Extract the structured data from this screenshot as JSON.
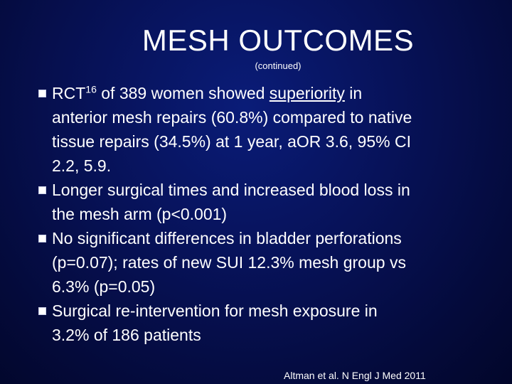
{
  "title": "MESH OUTCOMES",
  "subtitle": "(continued)",
  "bullets": [
    {
      "rct_prefix": "RCT",
      "rct_superscript": "16",
      "rct_middle": " of 389 women showed ",
      "rct_underlined": "superiority",
      "rct_after_underline": " in",
      "lines": [
        "anterior mesh repairs (60.8%) compared to native",
        "tissue repairs (34.5%) at 1 year, aOR 3.6, 95% CI",
        "2.2, 5.9."
      ]
    },
    {
      "lines": [
        "Longer surgical times and increased blood loss in",
        "the mesh arm (p<0.001)"
      ]
    },
    {
      "lines": [
        "No significant differences in bladder perforations",
        "(p=0.07); rates of new SUI 12.3% mesh group vs",
        "6.3% (p=0.05)"
      ]
    },
    {
      "lines": [
        "Surgical re-intervention for mesh exposure in",
        "3.2% of 186 patients"
      ]
    }
  ],
  "citation": "Altman et al. N Engl J Med 2011"
}
